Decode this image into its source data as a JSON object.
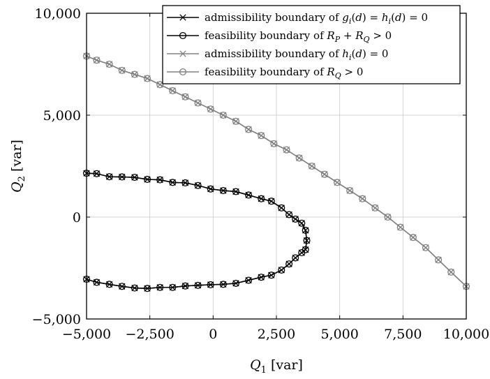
{
  "chart_data": {
    "type": "line",
    "xlabel": {
      "symbol": "Q",
      "sub": "1",
      "unit": " [var]"
    },
    "ylabel": {
      "symbol": "Q",
      "sub": "2",
      "unit": " [var]"
    },
    "xlim": [
      -5000,
      10000
    ],
    "ylim": [
      -5000,
      10000
    ],
    "xticks": [
      {
        "value": -5000,
        "label": "−5,000"
      },
      {
        "value": -2500,
        "label": "−2,500"
      },
      {
        "value": 0,
        "label": "0"
      },
      {
        "value": 2500,
        "label": "2,500"
      },
      {
        "value": 5000,
        "label": "5,000"
      },
      {
        "value": 7500,
        "label": "7,500"
      },
      {
        "value": 10000,
        "label": "10,000"
      }
    ],
    "yticks": [
      {
        "value": -5000,
        "label": "−5,000"
      },
      {
        "value": 0,
        "label": "0"
      },
      {
        "value": 5000,
        "label": "5,000"
      },
      {
        "value": 10000,
        "label": "10,000"
      }
    ],
    "grid": true,
    "legend_position": "top-right",
    "series": [
      {
        "name": "admissibility boundary of g_i(d) = h_i(d) = 0",
        "legend": [
          {
            "t": "admissibility boundary of "
          },
          {
            "t": "g",
            "it": true
          },
          {
            "t": "i",
            "sub": true
          },
          {
            "t": "(",
            "it": false
          },
          {
            "t": "d",
            "it": true
          },
          {
            "t": ") = "
          },
          {
            "t": "h",
            "it": true
          },
          {
            "t": "i",
            "sub": true
          },
          {
            "t": "("
          },
          {
            "t": "d",
            "it": true
          },
          {
            "t": ") = 0"
          }
        ],
        "color": "#000000",
        "marker": "x",
        "x": [
          -5000,
          -4600,
          -4100,
          -3600,
          -3100,
          -2600,
          -2100,
          -1600,
          -1100,
          -600,
          -100,
          400,
          900,
          1400,
          1900,
          2300,
          2700,
          3000,
          3250,
          3500,
          3650,
          3700,
          3650,
          3500,
          3250,
          3000,
          2700,
          2300,
          1900,
          1400,
          900,
          400,
          -100,
          -600,
          -1100,
          -1600,
          -2100,
          -2600,
          -3100,
          -3600,
          -4100,
          -4600,
          -5000
        ],
        "y": [
          2150,
          2130,
          1980,
          1970,
          1950,
          1850,
          1830,
          1700,
          1680,
          1550,
          1380,
          1300,
          1250,
          1080,
          900,
          780,
          450,
          120,
          -100,
          -300,
          -650,
          -1150,
          -1600,
          -1750,
          -2000,
          -2300,
          -2600,
          -2850,
          -2950,
          -3100,
          -3250,
          -3300,
          -3320,
          -3350,
          -3380,
          -3450,
          -3450,
          -3500,
          -3480,
          -3400,
          -3300,
          -3200,
          -3050
        ]
      },
      {
        "name": "feasibility boundary of R_P + R_Q > 0",
        "legend": [
          {
            "t": "feasibility boundary of "
          },
          {
            "t": "R",
            "it": true
          },
          {
            "t": "P",
            "sub": true
          },
          {
            "t": " + "
          },
          {
            "t": "R",
            "it": true
          },
          {
            "t": "Q",
            "sub": true
          },
          {
            "t": " > 0"
          }
        ],
        "color": "#000000",
        "marker": "o",
        "x": [
          -5000,
          -4600,
          -4100,
          -3600,
          -3100,
          -2600,
          -2100,
          -1600,
          -1100,
          -600,
          -100,
          400,
          900,
          1400,
          1900,
          2300,
          2700,
          3000,
          3250,
          3500,
          3650,
          3700,
          3650,
          3500,
          3250,
          3000,
          2700,
          2300,
          1900,
          1400,
          900,
          400,
          -100,
          -600,
          -1100,
          -1600,
          -2100,
          -2600,
          -3100,
          -3600,
          -4100,
          -4600,
          -5000
        ],
        "y": [
          2150,
          2130,
          1980,
          1970,
          1950,
          1850,
          1830,
          1700,
          1680,
          1550,
          1380,
          1300,
          1250,
          1080,
          900,
          780,
          450,
          120,
          -100,
          -300,
          -650,
          -1150,
          -1600,
          -1750,
          -2000,
          -2300,
          -2600,
          -2850,
          -2950,
          -3100,
          -3250,
          -3300,
          -3320,
          -3350,
          -3380,
          -3450,
          -3450,
          -3500,
          -3480,
          -3400,
          -3300,
          -3200,
          -3050
        ]
      },
      {
        "name": "admissibility boundary of h_i(d) = 0",
        "legend": [
          {
            "t": "admissibility boundary of "
          },
          {
            "t": "h",
            "it": true
          },
          {
            "t": "i",
            "sub": true
          },
          {
            "t": "("
          },
          {
            "t": "d",
            "it": true
          },
          {
            "t": ") = 0"
          }
        ],
        "color": "#808080",
        "marker": "x",
        "x": [
          -5000,
          -4600,
          -4100,
          -3600,
          -3100,
          -2600,
          -2100,
          -1600,
          -1100,
          -600,
          -100,
          400,
          900,
          1400,
          1900,
          2400,
          2900,
          3400,
          3900,
          4400,
          4900,
          5400,
          5900,
          6400,
          6900,
          7400,
          7900,
          8400,
          8900,
          9400,
          10000
        ],
        "y": [
          7900,
          7700,
          7500,
          7200,
          7000,
          6800,
          6500,
          6200,
          5900,
          5600,
          5300,
          5000,
          4700,
          4300,
          4000,
          3600,
          3300,
          2900,
          2500,
          2100,
          1700,
          1300,
          900,
          450,
          0,
          -500,
          -1000,
          -1500,
          -2100,
          -2700,
          -3400
        ]
      },
      {
        "name": "feasibility boundary of R_Q > 0",
        "legend": [
          {
            "t": "feasibility boundary of "
          },
          {
            "t": "R",
            "it": true
          },
          {
            "t": "Q",
            "sub": true
          },
          {
            "t": " > 0"
          }
        ],
        "color": "#808080",
        "marker": "o",
        "x": [
          -5000,
          -4600,
          -4100,
          -3600,
          -3100,
          -2600,
          -2100,
          -1600,
          -1100,
          -600,
          -100,
          400,
          900,
          1400,
          1900,
          2400,
          2900,
          3400,
          3900,
          4400,
          4900,
          5400,
          5900,
          6400,
          6900,
          7400,
          7900,
          8400,
          8900,
          9400,
          10000
        ],
        "y": [
          7900,
          7700,
          7500,
          7200,
          7000,
          6800,
          6500,
          6200,
          5900,
          5600,
          5300,
          5000,
          4700,
          4300,
          4000,
          3600,
          3300,
          2900,
          2500,
          2100,
          1700,
          1300,
          900,
          450,
          0,
          -500,
          -1000,
          -1500,
          -2100,
          -2700,
          -3400
        ]
      }
    ]
  }
}
